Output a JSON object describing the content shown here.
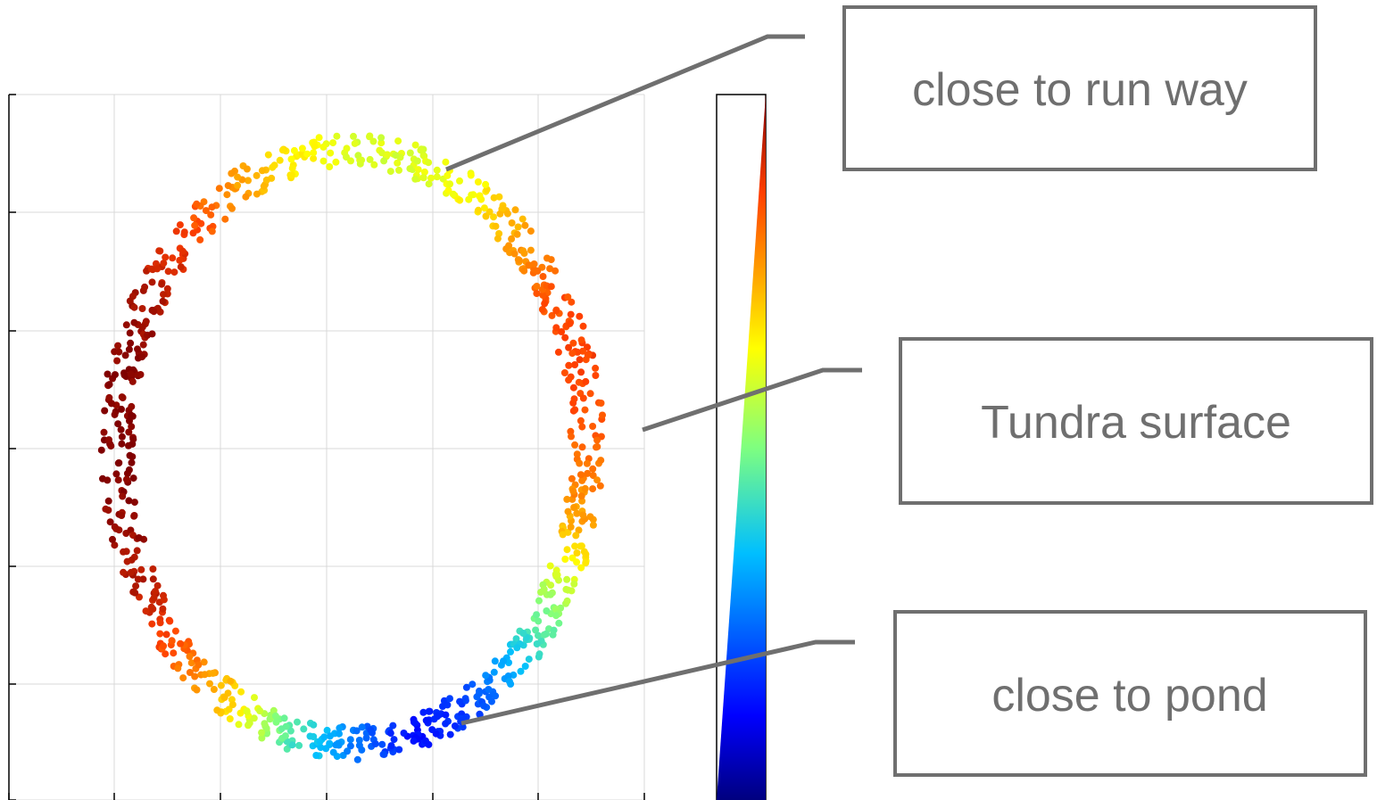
{
  "chart_data": {
    "type": "scatter",
    "title": "",
    "xlabel": "",
    "ylabel": "",
    "grid": true,
    "tick_labels_visible": false,
    "colormap": "jet",
    "colorbar": {
      "orientation": "vertical",
      "shape": "wedge",
      "placement": "right",
      "tick_labels_visible": false
    },
    "series": [
      {
        "geometry": "ring",
        "center": {
          "x": 0.54,
          "y": 0.5
        },
        "radius_x": 0.37,
        "radius_y": 0.42,
        "points": [
          {
            "angle_deg": 0,
            "value": 0.82
          },
          {
            "angle_deg": 15,
            "value": 0.86
          },
          {
            "angle_deg": 30,
            "value": 0.84
          },
          {
            "angle_deg": 45,
            "value": 0.75
          },
          {
            "angle_deg": 60,
            "value": 0.64
          },
          {
            "angle_deg": 75,
            "value": 0.6
          },
          {
            "angle_deg": 90,
            "value": 0.6
          },
          {
            "angle_deg": 105,
            "value": 0.66
          },
          {
            "angle_deg": 120,
            "value": 0.76
          },
          {
            "angle_deg": 135,
            "value": 0.87
          },
          {
            "angle_deg": 150,
            "value": 0.95
          },
          {
            "angle_deg": 165,
            "value": 0.99
          },
          {
            "angle_deg": 180,
            "value": 1.0
          },
          {
            "angle_deg": 195,
            "value": 0.98
          },
          {
            "angle_deg": 210,
            "value": 0.93
          },
          {
            "angle_deg": 225,
            "value": 0.81
          },
          {
            "angle_deg": 240,
            "value": 0.68
          },
          {
            "angle_deg": 255,
            "value": 0.44
          },
          {
            "angle_deg": 270,
            "value": 0.27
          },
          {
            "angle_deg": 285,
            "value": 0.13
          },
          {
            "angle_deg": 300,
            "value": 0.2
          },
          {
            "angle_deg": 315,
            "value": 0.36
          },
          {
            "angle_deg": 330,
            "value": 0.55
          },
          {
            "angle_deg": 345,
            "value": 0.74
          }
        ]
      }
    ],
    "annotations": [
      {
        "id": "runway",
        "text": "close to run way"
      },
      {
        "id": "tundra",
        "text": "Tundra surface"
      },
      {
        "id": "pond",
        "text": "close to pond"
      }
    ],
    "colors": {
      "callout_line": "#6f6f6f",
      "callout_text": "#6f6f6f",
      "grid": "#d9d9d9",
      "axes": "#000000"
    }
  }
}
